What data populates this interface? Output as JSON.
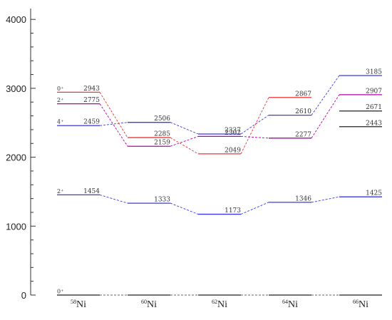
{
  "chart_data": {
    "type": "level-scheme",
    "title": "",
    "xlabel": "",
    "ylabel": "",
    "ylim": [
      0,
      4400
    ],
    "yticks": [
      "0",
      "1000",
      "2000",
      "3000",
      "4000"
    ],
    "minor_ytick_step": 200,
    "isotopes": [
      {
        "mass": "58",
        "element": "Ni"
      },
      {
        "mass": "60",
        "element": "Ni"
      },
      {
        "mass": "62",
        "element": "Ni"
      },
      {
        "mass": "64",
        "element": "Ni"
      },
      {
        "mass": "66",
        "element": "Ni"
      }
    ],
    "levels": [
      {
        "isotope": 0,
        "energy": 0,
        "label": "",
        "spin": "0⁺",
        "color": "#222222"
      },
      {
        "isotope": 1,
        "energy": 0,
        "label": "",
        "spin": "",
        "color": "#222222"
      },
      {
        "isotope": 2,
        "energy": 0,
        "label": "",
        "spin": "",
        "color": "#222222"
      },
      {
        "isotope": 3,
        "energy": 0,
        "label": "",
        "spin": "",
        "color": "#222222"
      },
      {
        "isotope": 4,
        "energy": 0,
        "label": "",
        "spin": "",
        "color": "#222222"
      },
      {
        "isotope": 0,
        "energy": 1454,
        "label": "1454",
        "spin": "2⁺",
        "color": "#3a3ae6"
      },
      {
        "isotope": 0,
        "energy": 2459,
        "label": "2459",
        "spin": "4⁺",
        "color": "#3a3ae6"
      },
      {
        "isotope": 0,
        "energy": 2775,
        "label": "2775",
        "spin": "2⁺",
        "color": "#b000b0"
      },
      {
        "isotope": 0,
        "energy": 2943,
        "label": "2943",
        "spin": "0⁺",
        "color": "#ee3333"
      },
      {
        "isotope": 1,
        "energy": 1333,
        "label": "1333",
        "spin": "",
        "color": "#3a3ae6"
      },
      {
        "isotope": 1,
        "energy": 2159,
        "label": "2159",
        "spin": "",
        "color": "#b000b0"
      },
      {
        "isotope": 1,
        "energy": 2285,
        "label": "2285",
        "spin": "",
        "color": "#ee3333"
      },
      {
        "isotope": 1,
        "energy": 2506,
        "label": "2506",
        "spin": "",
        "color": "#3a3ae6"
      },
      {
        "isotope": 2,
        "energy": 1173,
        "label": "1173",
        "spin": "",
        "color": "#3a3ae6"
      },
      {
        "isotope": 2,
        "energy": 2049,
        "label": "2049",
        "spin": "",
        "color": "#ee3333"
      },
      {
        "isotope": 2,
        "energy": 2302,
        "label": "2302",
        "spin": "",
        "color": "#b000b0"
      },
      {
        "isotope": 2,
        "energy": 2337,
        "label": "2337",
        "spin": "",
        "color": "#3a3ae6"
      },
      {
        "isotope": 3,
        "energy": 1346,
        "label": "1346",
        "spin": "",
        "color": "#3a3ae6"
      },
      {
        "isotope": 3,
        "energy": 2277,
        "label": "2277",
        "spin": "",
        "color": "#b000b0"
      },
      {
        "isotope": 3,
        "energy": 2610,
        "label": "2610",
        "spin": "",
        "color": "#3a3ae6"
      },
      {
        "isotope": 3,
        "energy": 2867,
        "label": "2867",
        "spin": "",
        "color": "#ee3333"
      },
      {
        "isotope": 4,
        "energy": 1425,
        "label": "1425",
        "spin": "",
        "color": "#3a3ae6"
      },
      {
        "isotope": 4,
        "energy": 2443,
        "label": "2443",
        "spin": "",
        "color": "#222222"
      },
      {
        "isotope": 4,
        "energy": 2671,
        "label": "2671",
        "spin": "",
        "color": "#222222"
      },
      {
        "isotope": 4,
        "energy": 2907,
        "label": "2907",
        "spin": "",
        "color": "#b000b0"
      },
      {
        "isotope": 4,
        "energy": 3185,
        "label": "3185",
        "spin": "",
        "color": "#3a3ae6"
      }
    ],
    "connections": [
      {
        "color": "#3a3ae6",
        "energies": [
          1454,
          1333,
          1173,
          1346,
          1425
        ]
      },
      {
        "color": "#3a3ae6",
        "energies": [
          2459,
          2506,
          2337,
          2610,
          3185
        ]
      },
      {
        "color": "#b000b0",
        "energies": [
          2775,
          2159,
          2302,
          2277,
          2907
        ]
      },
      {
        "color": "#ee3333",
        "energies": [
          2943,
          2285,
          2049,
          2867
        ]
      },
      {
        "color": "#666666",
        "energies": [
          0,
          0,
          0,
          0,
          0
        ]
      }
    ]
  }
}
